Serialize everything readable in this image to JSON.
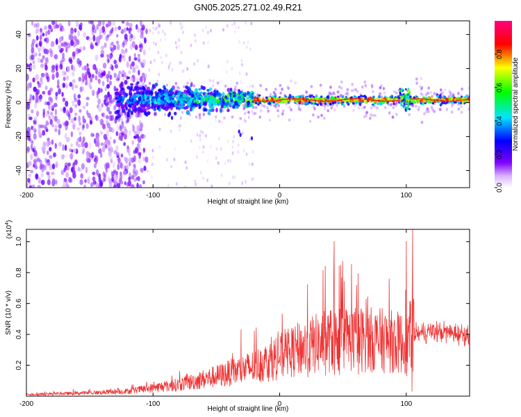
{
  "title": "GN05.2025.271.02.49.R21",
  "colors": {
    "snr_line": "#ee3333",
    "frame": "#000000",
    "background": "#ffffff"
  },
  "chart_data": [
    {
      "type": "heatmap",
      "name": "spectrogram",
      "xlabel": "Height of straight line (km)",
      "ylabel": "Frequency (Hz)",
      "xlim": [
        -200,
        150
      ],
      "ylim": [
        -50,
        48
      ],
      "xticks": [
        -200,
        -100,
        0,
        100
      ],
      "yticks": [
        -40,
        -20,
        0,
        20,
        40
      ],
      "colorbar": {
        "label": "Normalized spectral amplitude",
        "range": [
          0.0,
          1.0
        ],
        "ticks": [
          "0.0",
          "0.2",
          "0.4",
          "0.6",
          "0.8"
        ],
        "tick_values": [
          0.0,
          0.2,
          0.4,
          0.6,
          0.8
        ],
        "colormap": "rainbow (white-violet-blue-cyan-green-yellow-red-magenta)"
      },
      "features": [
        {
          "description": "scattered low-amplitude noise",
          "x_range": [
            -200,
            -110
          ],
          "freq_range": [
            -50,
            48
          ],
          "amplitude": 0.1
        },
        {
          "description": "emerging tone band",
          "x_range": [
            -130,
            -20
          ],
          "freq_center": 2,
          "spread_hz": 8,
          "amplitude": 0.4
        },
        {
          "description": "stable tone near 1 Hz",
          "x_range": [
            -20,
            150
          ],
          "freq_center": 1.5,
          "spread_hz": 2,
          "amplitude": 0.9
        },
        {
          "description": "frequency jump",
          "x": 97,
          "freq_range": [
            -5,
            8
          ]
        }
      ]
    },
    {
      "type": "line",
      "name": "snr",
      "xlabel": "Height of straight line (km)",
      "ylabel": "SNR (10 * v/v)",
      "y_multiplier": "(x10",
      "y_multiplier_exp": "4",
      "y_multiplier_close": ")",
      "xlim": [
        -200,
        150
      ],
      "ylim": [
        0,
        1.08
      ],
      "xticks": [
        -200,
        -100,
        0,
        100
      ],
      "yticks": [
        0.2,
        0.4,
        0.6,
        0.8,
        1.0
      ],
      "series": [
        {
          "name": "SNR",
          "envelope_x": [
            -200,
            -150,
            -120,
            -100,
            -80,
            -50,
            -20,
            0,
            20,
            40,
            60,
            80,
            100,
            105,
            120,
            150
          ],
          "envelope_mean": [
            0.01,
            0.02,
            0.03,
            0.05,
            0.07,
            0.12,
            0.18,
            0.24,
            0.3,
            0.34,
            0.35,
            0.34,
            0.32,
            0.4,
            0.42,
            0.4
          ],
          "spikes": [
            {
              "x": 43,
              "y": 1.0
            },
            {
              "x": 100,
              "y": 1.0
            },
            {
              "x": 105,
              "y": 1.08
            },
            {
              "x": 36,
              "y": 0.84
            },
            {
              "x": 47,
              "y": 0.84
            },
            {
              "x": 62,
              "y": 0.79
            },
            {
              "x": 22,
              "y": 0.72
            }
          ]
        }
      ]
    }
  ]
}
